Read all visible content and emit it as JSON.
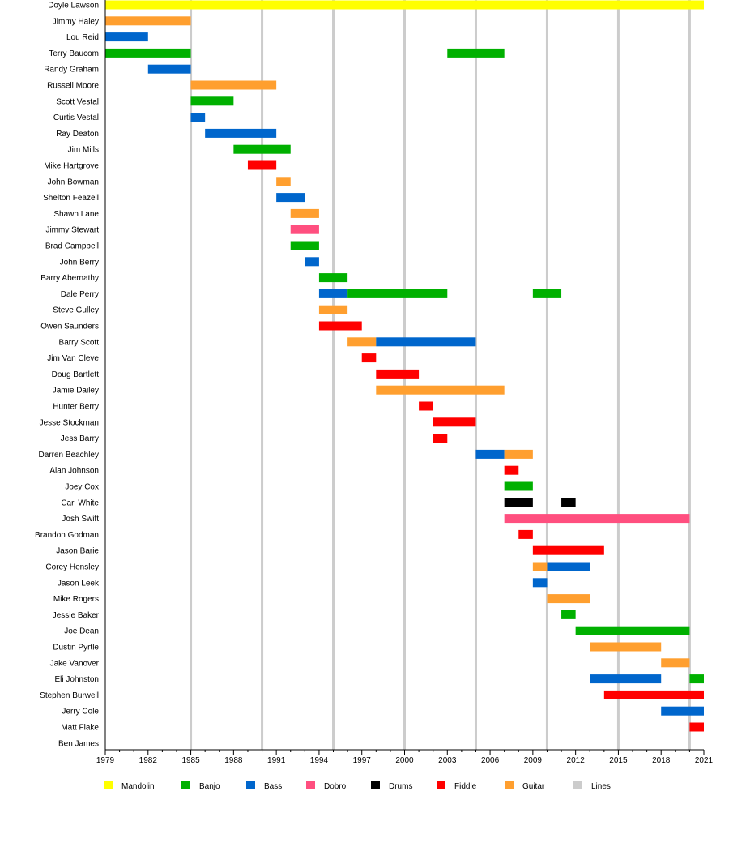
{
  "chart_data": {
    "type": "timeline",
    "xlim": [
      1979,
      2021
    ],
    "x_ticks": [
      1979,
      1982,
      1985,
      1988,
      1991,
      1994,
      1997,
      2000,
      2003,
      2006,
      2009,
      2012,
      2015,
      2018,
      2021
    ],
    "vertical_lines": [
      1985,
      1990,
      1995,
      2000,
      2005,
      2010,
      2015,
      2020
    ],
    "colors": {
      "Mandolin": "#ffff00",
      "Banjo": "#00b000",
      "Bass": "#0066cc",
      "Dobro": "#ff4f7f",
      "Drums": "#000000",
      "Fiddle": "#ff0000",
      "Guitar": "#ff9f2f",
      "Lines": "#cccccc"
    },
    "legend": [
      "Mandolin",
      "Banjo",
      "Bass",
      "Dobro",
      "Drums",
      "Fiddle",
      "Guitar",
      "Lines"
    ],
    "legend_position": "bottom",
    "members": [
      {
        "name": "Doyle Lawson",
        "spans": [
          [
            1979,
            2021,
            "Mandolin"
          ]
        ]
      },
      {
        "name": "Jimmy Haley",
        "spans": [
          [
            1979,
            1985,
            "Guitar"
          ]
        ]
      },
      {
        "name": "Lou Reid",
        "spans": [
          [
            1979,
            1982,
            "Bass"
          ]
        ]
      },
      {
        "name": "Terry Baucom",
        "spans": [
          [
            1979,
            1985,
            "Banjo"
          ],
          [
            2003,
            2007,
            "Banjo"
          ]
        ]
      },
      {
        "name": "Randy Graham",
        "spans": [
          [
            1982,
            1985,
            "Bass"
          ]
        ]
      },
      {
        "name": "Russell Moore",
        "spans": [
          [
            1985,
            1991,
            "Guitar"
          ]
        ]
      },
      {
        "name": "Scott Vestal",
        "spans": [
          [
            1985,
            1988,
            "Banjo"
          ]
        ]
      },
      {
        "name": "Curtis Vestal",
        "spans": [
          [
            1985,
            1986,
            "Bass"
          ]
        ]
      },
      {
        "name": "Ray Deaton",
        "spans": [
          [
            1986,
            1991,
            "Bass"
          ]
        ]
      },
      {
        "name": "Jim Mills",
        "spans": [
          [
            1988,
            1992,
            "Banjo"
          ]
        ]
      },
      {
        "name": "Mike Hartgrove",
        "spans": [
          [
            1989,
            1991,
            "Fiddle"
          ]
        ]
      },
      {
        "name": "John Bowman",
        "spans": [
          [
            1991,
            1992,
            "Guitar"
          ]
        ]
      },
      {
        "name": "Shelton Feazell",
        "spans": [
          [
            1991,
            1993,
            "Bass"
          ]
        ]
      },
      {
        "name": "Shawn Lane",
        "spans": [
          [
            1992,
            1994,
            "Guitar"
          ]
        ]
      },
      {
        "name": "Jimmy Stewart",
        "spans": [
          [
            1992,
            1994,
            "Dobro"
          ]
        ]
      },
      {
        "name": "Brad Campbell",
        "spans": [
          [
            1992,
            1994,
            "Banjo"
          ]
        ]
      },
      {
        "name": "John Berry",
        "spans": [
          [
            1993,
            1994,
            "Bass"
          ]
        ]
      },
      {
        "name": "Barry Abernathy",
        "spans": [
          [
            1994,
            1996,
            "Banjo"
          ]
        ]
      },
      {
        "name": "Dale Perry",
        "spans": [
          [
            1994,
            1996,
            "Bass"
          ],
          [
            1996,
            2003,
            "Banjo"
          ],
          [
            2009,
            2011,
            "Banjo"
          ]
        ]
      },
      {
        "name": "Steve Gulley",
        "spans": [
          [
            1994,
            1996,
            "Guitar"
          ]
        ]
      },
      {
        "name": "Owen Saunders",
        "spans": [
          [
            1994,
            1997,
            "Fiddle"
          ]
        ]
      },
      {
        "name": "Barry Scott",
        "spans": [
          [
            1996,
            1998,
            "Guitar"
          ],
          [
            1998,
            2005,
            "Bass"
          ]
        ]
      },
      {
        "name": "Jim Van Cleve",
        "spans": [
          [
            1997,
            1998,
            "Fiddle"
          ]
        ]
      },
      {
        "name": "Doug Bartlett",
        "spans": [
          [
            1998,
            2001,
            "Fiddle"
          ]
        ]
      },
      {
        "name": "Jamie Dailey",
        "spans": [
          [
            1998,
            2007,
            "Guitar"
          ]
        ]
      },
      {
        "name": "Hunter Berry",
        "spans": [
          [
            2001,
            2002,
            "Fiddle"
          ]
        ]
      },
      {
        "name": "Jesse Stockman",
        "spans": [
          [
            2002,
            2005,
            "Fiddle"
          ]
        ]
      },
      {
        "name": "Jess Barry",
        "spans": [
          [
            2002,
            2003,
            "Fiddle"
          ]
        ]
      },
      {
        "name": "Darren Beachley",
        "spans": [
          [
            2005,
            2007,
            "Bass"
          ],
          [
            2007,
            2009,
            "Guitar"
          ]
        ]
      },
      {
        "name": "Alan Johnson",
        "spans": [
          [
            2007,
            2008,
            "Fiddle"
          ]
        ]
      },
      {
        "name": "Joey Cox",
        "spans": [
          [
            2007,
            2009,
            "Banjo"
          ]
        ]
      },
      {
        "name": "Carl White",
        "spans": [
          [
            2007,
            2009,
            "Drums"
          ],
          [
            2011,
            2012,
            "Drums"
          ]
        ]
      },
      {
        "name": "Josh Swift",
        "spans": [
          [
            2007,
            2020,
            "Dobro"
          ]
        ]
      },
      {
        "name": "Brandon Godman",
        "spans": [
          [
            2008,
            2009,
            "Fiddle"
          ]
        ]
      },
      {
        "name": "Jason Barie",
        "spans": [
          [
            2009,
            2014,
            "Fiddle"
          ]
        ]
      },
      {
        "name": "Corey Hensley",
        "spans": [
          [
            2009,
            2010,
            "Guitar"
          ],
          [
            2010,
            2013,
            "Bass"
          ]
        ]
      },
      {
        "name": "Jason Leek",
        "spans": [
          [
            2009,
            2010,
            "Bass"
          ]
        ]
      },
      {
        "name": "Mike Rogers",
        "spans": [
          [
            2010,
            2013,
            "Guitar"
          ]
        ]
      },
      {
        "name": "Jessie Baker",
        "spans": [
          [
            2011,
            2012,
            "Banjo"
          ]
        ]
      },
      {
        "name": "Joe Dean",
        "spans": [
          [
            2012,
            2020,
            "Banjo"
          ]
        ]
      },
      {
        "name": "Dustin Pyrtle",
        "spans": [
          [
            2013,
            2018,
            "Guitar"
          ]
        ]
      },
      {
        "name": "Jake Vanover",
        "spans": [
          [
            2018,
            2020,
            "Guitar"
          ]
        ]
      },
      {
        "name": "Eli Johnston",
        "spans": [
          [
            2013,
            2018,
            "Bass"
          ],
          [
            2020,
            2021,
            "Banjo"
          ]
        ]
      },
      {
        "name": "Stephen Burwell",
        "spans": [
          [
            2014,
            2021,
            "Fiddle"
          ]
        ]
      },
      {
        "name": "Jerry Cole",
        "spans": [
          [
            2018,
            2021,
            "Bass"
          ]
        ]
      },
      {
        "name": "Matt Flake",
        "spans": [
          [
            2020,
            2021,
            "Fiddle"
          ]
        ]
      },
      {
        "name": "Ben James",
        "spans": []
      }
    ]
  }
}
